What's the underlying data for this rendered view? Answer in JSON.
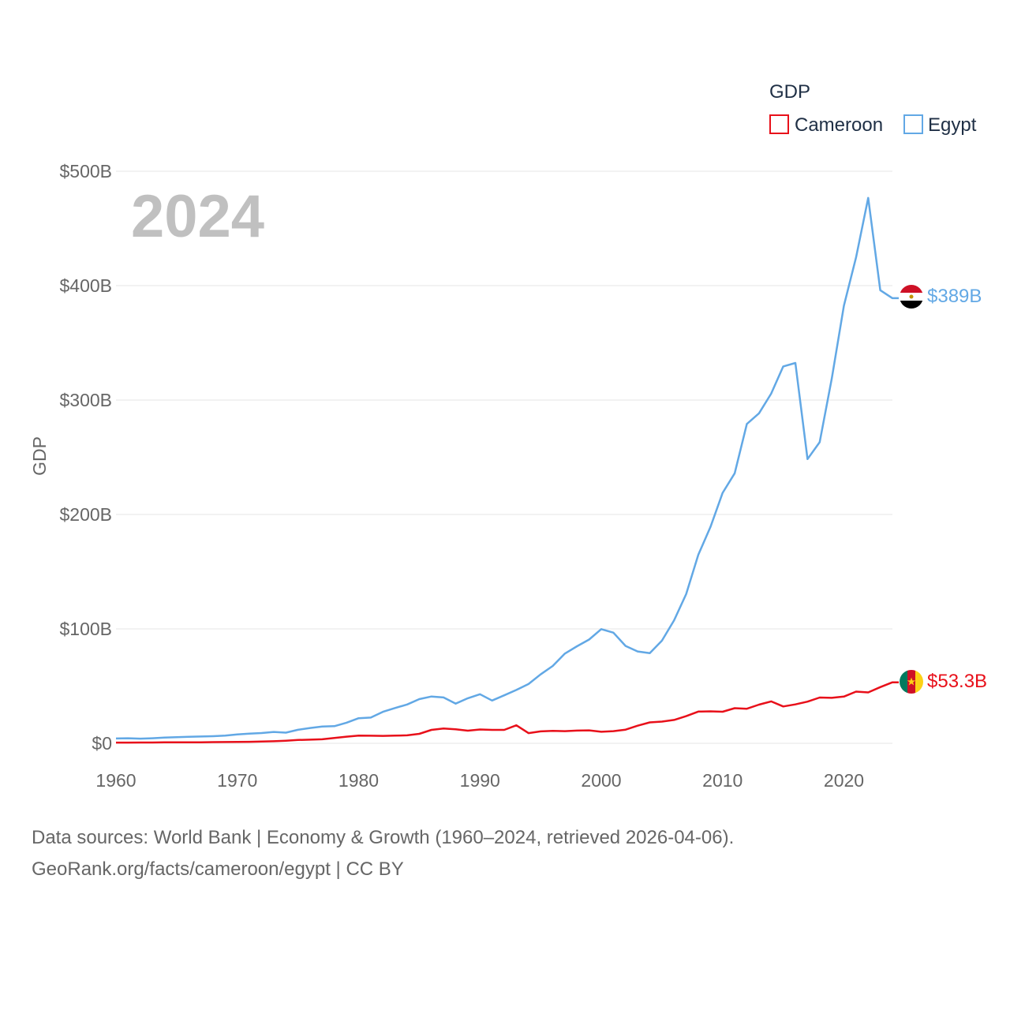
{
  "chart_data": {
    "type": "line",
    "year_overlay": "2024",
    "ylabel": "GDP",
    "ylim": [
      0,
      500
    ],
    "xlim": [
      1960,
      2024
    ],
    "y_ticks": [
      {
        "value": 0,
        "label": "$0"
      },
      {
        "value": 100,
        "label": "$100B"
      },
      {
        "value": 200,
        "label": "$200B"
      },
      {
        "value": 300,
        "label": "$300B"
      },
      {
        "value": 400,
        "label": "$400B"
      },
      {
        "value": 500,
        "label": "$500B"
      }
    ],
    "x_ticks": [
      {
        "value": 1960,
        "label": "1960"
      },
      {
        "value": 1970,
        "label": "1970"
      },
      {
        "value": 1980,
        "label": "1980"
      },
      {
        "value": 1990,
        "label": "1990"
      },
      {
        "value": 2000,
        "label": "2000"
      },
      {
        "value": 2010,
        "label": "2010"
      },
      {
        "value": 2020,
        "label": "2020"
      }
    ],
    "legend": {
      "title": "GDP",
      "position": "top-right",
      "entries": [
        {
          "name": "Cameroon",
          "color": "#e8101a"
        },
        {
          "name": "Egypt",
          "color": "#62a8e5"
        }
      ]
    },
    "series": [
      {
        "name": "Egypt",
        "color": "#62a8e5",
        "end_label": "$389B",
        "flag": "egypt-flag-icon",
        "x": [
          1960,
          1961,
          1962,
          1963,
          1964,
          1965,
          1966,
          1967,
          1968,
          1969,
          1970,
          1971,
          1972,
          1973,
          1974,
          1975,
          1976,
          1977,
          1978,
          1979,
          1980,
          1981,
          1982,
          1983,
          1984,
          1985,
          1986,
          1987,
          1988,
          1989,
          1990,
          1991,
          1992,
          1993,
          1994,
          1995,
          1996,
          1997,
          1998,
          1999,
          2000,
          2001,
          2002,
          2003,
          2004,
          2005,
          2006,
          2007,
          2008,
          2009,
          2010,
          2011,
          2012,
          2013,
          2014,
          2015,
          2016,
          2017,
          2018,
          2019,
          2020,
          2021,
          2022,
          2023,
          2024
        ],
        "values": [
          4.2,
          4.4,
          4.1,
          4.4,
          5.0,
          5.3,
          5.7,
          5.9,
          6.2,
          6.7,
          7.7,
          8.4,
          9.0,
          9.9,
          9.3,
          11.8,
          13.4,
          14.7,
          15.0,
          18.0,
          21.9,
          22.5,
          27.5,
          30.8,
          33.9,
          38.6,
          40.9,
          40.1,
          34.7,
          39.4,
          42.9,
          37.4,
          41.9,
          46.6,
          51.8,
          60.2,
          67.6,
          78.4,
          84.8,
          90.7,
          99.8,
          96.7,
          85.1,
          80.3,
          78.8,
          89.7,
          107.5,
          130.4,
          164.8,
          189.1,
          218.9,
          236.0,
          279.1,
          288.4,
          305.6,
          329.4,
          332.4,
          248.4,
          263.2,
          318.7,
          382.5,
          424.7,
          476.7,
          396.0,
          389.0
        ]
      },
      {
        "name": "Cameroon",
        "color": "#e8101a",
        "end_label": "$53.3B",
        "flag": "cameroon-flag-icon",
        "x": [
          1960,
          1961,
          1962,
          1963,
          1964,
          1965,
          1966,
          1967,
          1968,
          1969,
          1970,
          1971,
          1972,
          1973,
          1974,
          1975,
          1976,
          1977,
          1978,
          1979,
          1980,
          1981,
          1982,
          1983,
          1984,
          1985,
          1986,
          1987,
          1988,
          1989,
          1990,
          1991,
          1992,
          1993,
          1994,
          1995,
          1996,
          1997,
          1998,
          1999,
          2000,
          2001,
          2002,
          2003,
          2004,
          2005,
          2006,
          2007,
          2008,
          2009,
          2010,
          2011,
          2012,
          2013,
          2014,
          2015,
          2016,
          2017,
          2018,
          2019,
          2020,
          2021,
          2022,
          2023,
          2024
        ],
        "values": [
          0.6,
          0.6,
          0.7,
          0.7,
          0.8,
          0.8,
          0.9,
          0.9,
          1.0,
          1.1,
          1.2,
          1.3,
          1.5,
          1.8,
          2.3,
          2.9,
          3.2,
          3.5,
          4.6,
          5.8,
          6.7,
          6.6,
          6.5,
          6.7,
          7.0,
          8.3,
          11.7,
          12.9,
          12.2,
          11.0,
          12.1,
          11.7,
          11.7,
          15.7,
          8.9,
          10.4,
          10.8,
          10.6,
          11.1,
          11.3,
          10.1,
          10.6,
          11.9,
          15.4,
          18.3,
          19.0,
          20.4,
          23.7,
          27.7,
          27.9,
          27.6,
          30.7,
          30.2,
          33.8,
          36.6,
          32.2,
          34.0,
          36.4,
          40.0,
          39.7,
          40.8,
          45.2,
          44.5,
          49.1,
          53.3
        ]
      }
    ]
  },
  "footer": {
    "sources": "Data sources: World Bank | Economy & Growth (1960–2024, retrieved 2026-04-06).",
    "attribution": "GeoRank.org/facts/cameroon/egypt | CC BY"
  }
}
